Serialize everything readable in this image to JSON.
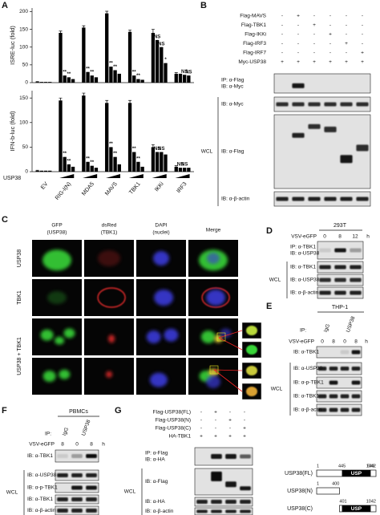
{
  "chart_data": [
    {
      "type": "bar",
      "y_label": "ISRE-luc (fold)",
      "categories": [
        null,
        null,
        null,
        null,
        null,
        null,
        null
      ],
      "ylim": [
        0,
        210
      ],
      "yticks": [
        0,
        50,
        100,
        150,
        200
      ],
      "series": [
        {
          "color": "#000000",
          "values": [
            2,
            140,
            155,
            195,
            143,
            140,
            25
          ],
          "errors": [
            1,
            5,
            5,
            6,
            5,
            10,
            3
          ]
        },
        {
          "color": "#000000",
          "values": [
            2,
            20,
            30,
            45,
            20,
            120,
            25
          ],
          "annotations": [
            null,
            "**",
            "**",
            "**",
            "**",
            "NS",
            null
          ]
        },
        {
          "color": "#000000",
          "values": [
            2,
            15,
            20,
            35,
            10,
            100,
            22
          ],
          "annotations": [
            null,
            "**",
            "**",
            "**",
            "**",
            "NS",
            "NS"
          ]
        },
        {
          "color": "#000000",
          "values": [
            2,
            10,
            15,
            25,
            8,
            55,
            20
          ],
          "annotations": [
            null,
            null,
            null,
            null,
            null,
            "*",
            "NS"
          ]
        }
      ]
    },
    {
      "type": "bar",
      "y_label": "IFN-b-luc (fold)",
      "x_label": "USP38",
      "categories": [
        "EV",
        "RIG-I(N)",
        "MDA5",
        "MAVS",
        "TBK1",
        "IKKi",
        "IRF3"
      ],
      "ylim": [
        0,
        165
      ],
      "yticks": [
        0,
        50,
        100,
        150
      ],
      "series": [
        {
          "color": "#000000",
          "values": [
            2,
            145,
            155,
            140,
            140,
            50,
            10
          ],
          "errors": [
            1,
            5,
            5,
            5,
            5,
            5,
            2
          ]
        },
        {
          "color": "#000000",
          "values": [
            2,
            30,
            20,
            50,
            40,
            40,
            8
          ],
          "annotations": [
            null,
            "**",
            "**",
            "**",
            "**",
            "NS",
            "NS"
          ]
        },
        {
          "color": "#000000",
          "values": [
            2,
            15,
            12,
            30,
            20,
            40,
            8
          ],
          "annotations": [
            null,
            "**",
            "**",
            "**",
            "**",
            "NS",
            "NS"
          ]
        },
        {
          "color": "#000000",
          "values": [
            2,
            10,
            8,
            15,
            10,
            35,
            8
          ]
        }
      ]
    }
  ],
  "panel_a": {
    "label": "A"
  },
  "panel_b": {
    "label": "B",
    "rows": [
      {
        "name": "Flag-MAVS",
        "signs": [
          "-",
          "+",
          "-",
          "-",
          "-",
          "-"
        ]
      },
      {
        "name": "Flag-TBK1",
        "signs": [
          "-",
          "-",
          "+",
          "-",
          "-",
          "-"
        ]
      },
      {
        "name": "Flag-IKKi",
        "signs": [
          "-",
          "-",
          "-",
          "+",
          "-",
          "-"
        ]
      },
      {
        "name": "Flag-IRF3",
        "signs": [
          "-",
          "-",
          "-",
          "-",
          "+",
          "-"
        ]
      },
      {
        "name": "Flag-IRF7",
        "signs": [
          "-",
          "-",
          "-",
          "-",
          "-",
          "+"
        ]
      },
      {
        "name": "Myc-USP38",
        "signs": [
          "+",
          "+",
          "+",
          "+",
          "+",
          "+"
        ]
      }
    ],
    "blots": [
      [
        "IP: α-Flag",
        "IB: α-Myc"
      ],
      [
        "IB: α-Myc"
      ],
      [
        "IB: α-Flag"
      ],
      [
        "IB: α-β-actin"
      ]
    ],
    "group": "WCL"
  },
  "panel_c": {
    "label": "C",
    "columns": [
      {
        "name": "GFP",
        "detail": "(USP38)"
      },
      {
        "name": "dsRed",
        "detail": "(TBK1)"
      },
      {
        "name": "DAPI",
        "detail": "(nuclei)"
      },
      {
        "name": "Merge"
      }
    ],
    "rows": [
      "USP38",
      "TBK1",
      "USP38 + TBK1"
    ]
  },
  "panel_d": {
    "label": "D",
    "cell": "293T",
    "condition": "VSV-eGFP",
    "lanes": [
      "0",
      "8",
      "12"
    ],
    "unit": "h",
    "blots": [
      [
        "IP: α-TBK1",
        "IB: α-USP38"
      ],
      [
        "IB: α-TBK1"
      ],
      [
        "IB: α-USP38"
      ],
      [
        "IB: α-β-actin"
      ]
    ],
    "group": "WCL"
  },
  "panel_e": {
    "label": "E",
    "cell": "THP-1",
    "ip": "IP:",
    "ip_groups": [
      "IgG",
      "USP38"
    ],
    "condition": "VSV-eGFP",
    "lanes": [
      "0",
      "8",
      "0",
      "8"
    ],
    "unit": "h",
    "blots": [
      [
        "IB: α-TBK1"
      ],
      [
        "IB: α-USP38"
      ],
      [
        "IB: α-p-TBK1"
      ],
      [
        "IB: α-TBK1"
      ],
      [
        "IB: α-β-actin"
      ]
    ],
    "group": "WCL"
  },
  "panel_f": {
    "label": "F",
    "cell": "PBMCs",
    "ip": "IP:",
    "ip_groups": [
      "IgG",
      "USP38"
    ],
    "condition": "VSV-eGFP",
    "lanes": [
      "8",
      "0",
      "8"
    ],
    "unit": "h",
    "blots": [
      [
        "IB: α-TBK1"
      ],
      [
        "IB: α-USP38"
      ],
      [
        "IB: α-p-TBK1"
      ],
      [
        "IB: α-TBK1"
      ],
      [
        "IB: α-β-actin"
      ]
    ],
    "group": "WCL"
  },
  "panel_g": {
    "label": "G",
    "rows": [
      {
        "name": "Flag-USP38(FL)",
        "signs": [
          "-",
          "+",
          "-",
          "-"
        ]
      },
      {
        "name": "Flag-USP38(N)",
        "signs": [
          "-",
          "-",
          "+",
          "-"
        ]
      },
      {
        "name": "Flag-USP38(C)",
        "signs": [
          "-",
          "-",
          "-",
          "+"
        ]
      },
      {
        "name": "HA-TBK1",
        "signs": [
          "+",
          "+",
          "+",
          "+"
        ]
      }
    ],
    "blots": [
      [
        "IP: α-Flag",
        "IB: α-HA"
      ],
      [
        "IB: α-Flag"
      ],
      [
        "IB: α-HA"
      ],
      [
        "IB: α-β-actin"
      ]
    ],
    "group": "WCL",
    "domains": [
      {
        "name": "USP38(FL)",
        "marks": [
          "1",
          "445",
          "949",
          "1042"
        ],
        "box": "USP"
      },
      {
        "name": "USP38(N)",
        "marks": [
          "1",
          "400"
        ]
      },
      {
        "name": "USP38(C)",
        "marks": [
          "401",
          "1042"
        ],
        "box": "USP"
      }
    ]
  }
}
